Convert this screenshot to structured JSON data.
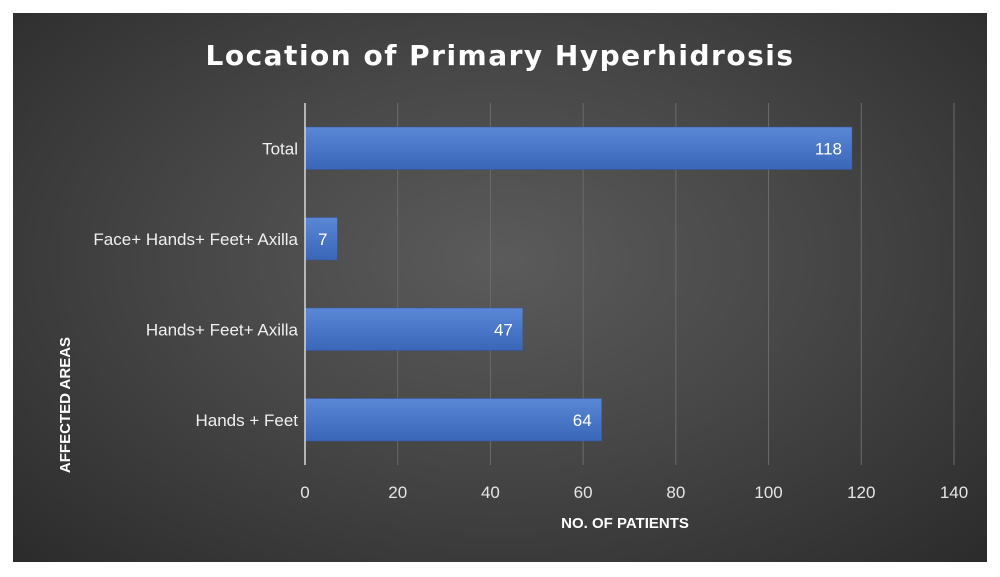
{
  "chart_data": {
    "type": "bar",
    "orientation": "horizontal",
    "title": "Location of Primary Hyperhidrosis",
    "xlabel": "NO. OF PATIENTS",
    "ylabel": "AFFECTED AREAS",
    "categories": [
      "Hands + Feet",
      "Hands+ Feet+ Axilla",
      "Face+ Hands+ Feet+ Axilla",
      "Total"
    ],
    "values": [
      64,
      47,
      7,
      118
    ],
    "xlim": [
      0,
      140
    ],
    "xticks": [
      0,
      20,
      40,
      60,
      80,
      100,
      120,
      140
    ],
    "grid": true,
    "legend": "none",
    "colors": {
      "bar": "#4472c4",
      "background": "#3f3f3f",
      "text": "#ffffff"
    }
  }
}
